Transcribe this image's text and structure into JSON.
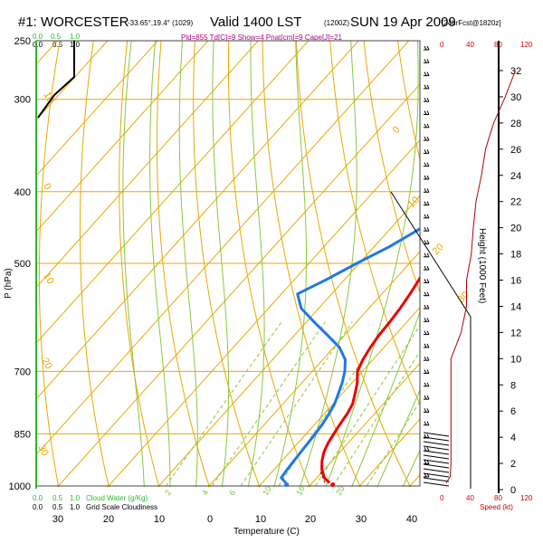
{
  "header": {
    "station": "#1: WORCESTER",
    "coords": "-33.65°,19.4° (1029)",
    "valid": "Valid 1400 LST",
    "valid_utc": "(1200Z)",
    "date": "SUN 19 Apr 2009",
    "forecast": "[24hrFcst@1820z]",
    "indices": "Pld=855 Td[C]=9 Show=4 Pnat[cm]=9 Cape[J]=21"
  },
  "cloud_scale": {
    "top_green": [
      "0.0",
      "0.5",
      "1.0"
    ],
    "top_black": [
      "0.0",
      "0.5",
      "1.0"
    ],
    "bottom_green": [
      "0.0",
      "0.5",
      "1.0"
    ],
    "bottom_green_label": "Cloud Water (g/Kg)",
    "bottom_black": [
      "0.0",
      "0.5",
      "1.0"
    ],
    "bottom_black_label": "Grid Scale Cloudiness"
  },
  "wind_scale": {
    "top_ticks": [
      "0",
      "40",
      "80",
      "120"
    ],
    "bottom_ticks": [
      "0",
      "40",
      "80",
      "120"
    ],
    "bottom_label": "Speed (kt)"
  },
  "colors": {
    "temperature": "#ee0000",
    "dewpoint": "#1f78e8",
    "isotherm": "#e8a800",
    "dry_adiabat": "#e8a800",
    "moist_adiabat": "#88c840",
    "mixing_ratio": "#88c840",
    "speed": "#b00000"
  },
  "chart_data": {
    "type": "line",
    "title": "#1: WORCESTER",
    "xlabel": "Temperature (C)",
    "ylabel": "P (hPa)",
    "y2label": "Height (1000 Feet)",
    "y_scale": "log",
    "xlim": [
      -35,
      45
    ],
    "ylim": [
      1000,
      250
    ],
    "x_ticks": [
      "30",
      "20",
      "10",
      "0",
      "10",
      "20",
      "30",
      "40"
    ],
    "y_ticks": [
      250,
      300,
      400,
      500,
      700,
      850,
      1000
    ],
    "height_ticks": [
      0,
      2,
      4,
      6,
      8,
      10,
      12,
      14,
      16,
      18,
      20,
      22,
      24,
      26,
      28,
      30,
      32
    ],
    "isotherm_labels": [
      "0",
      "10",
      "20",
      "30"
    ],
    "dry_adiabat_labels": [
      "10",
      "0",
      "10",
      "20",
      "30"
    ],
    "mixing_ratio_labels": [
      "2",
      "4",
      "6",
      "10",
      "16",
      "20"
    ],
    "series": [
      {
        "points": [
          [
            23.4,
            990
          ],
          [
            21.5,
            975
          ],
          [
            19.5,
            950
          ],
          [
            18.0,
            925
          ],
          [
            16.8,
            900
          ],
          [
            16.0,
            875
          ],
          [
            15.5,
            850
          ],
          [
            15.0,
            825
          ],
          [
            14.6,
            800
          ],
          [
            13.9,
            775
          ],
          [
            12.5,
            750
          ],
          [
            11.0,
            725
          ],
          [
            9.0,
            700
          ],
          [
            8.0,
            675
          ],
          [
            7.3,
            650
          ],
          [
            6.8,
            625
          ],
          [
            6.6,
            600
          ],
          [
            6.2,
            575
          ],
          [
            5.6,
            550
          ],
          [
            4.8,
            525
          ],
          [
            3.8,
            500
          ],
          [
            2.8,
            475
          ],
          [
            1.8,
            450
          ],
          [
            0.6,
            425
          ],
          [
            -0.7,
            400
          ],
          [
            -2.1,
            375
          ],
          [
            -3.7,
            350
          ],
          [
            -5.6,
            325
          ],
          [
            -7.8,
            300
          ],
          [
            -10.4,
            275
          ],
          [
            -13.3,
            255
          ]
        ]
      },
      {
        "points": [
          [
            14.7,
            990
          ],
          [
            12.9,
            975
          ],
          [
            12.6,
            950
          ],
          [
            12.4,
            925
          ],
          [
            12.2,
            900
          ],
          [
            12.0,
            875
          ],
          [
            11.8,
            850
          ],
          [
            11.5,
            825
          ],
          [
            11.0,
            800
          ],
          [
            10.3,
            775
          ],
          [
            9.2,
            750
          ],
          [
            8.0,
            725
          ],
          [
            6.5,
            700
          ],
          [
            4.5,
            675
          ],
          [
            1.2,
            650
          ],
          [
            -3.5,
            625
          ],
          [
            -8.5,
            600
          ],
          [
            -13.5,
            575
          ],
          [
            -16.8,
            550
          ],
          [
            -13.5,
            525
          ],
          [
            -10.5,
            500
          ],
          [
            -7.0,
            475
          ],
          [
            -4.2,
            450
          ],
          [
            -3.0,
            425
          ],
          [
            -3.6,
            400
          ],
          [
            -5.5,
            375
          ],
          [
            -8.0,
            350
          ],
          [
            -10.5,
            325
          ],
          [
            -12.0,
            300
          ],
          [
            -14.5,
            275
          ],
          [
            -17.5,
            255
          ]
        ]
      }
    ],
    "wind_speed_profile": {
      "height_kft": [
        0.5,
        1,
        2,
        3,
        4,
        6,
        8,
        10,
        12,
        14,
        16,
        18,
        20,
        22,
        24,
        26,
        28,
        30,
        32
      ],
      "speed_kt": [
        8,
        14,
        15,
        15,
        15,
        15,
        15,
        15,
        30,
        38,
        38,
        45,
        48,
        52,
        60,
        66,
        78,
        95,
        110
      ]
    }
  }
}
